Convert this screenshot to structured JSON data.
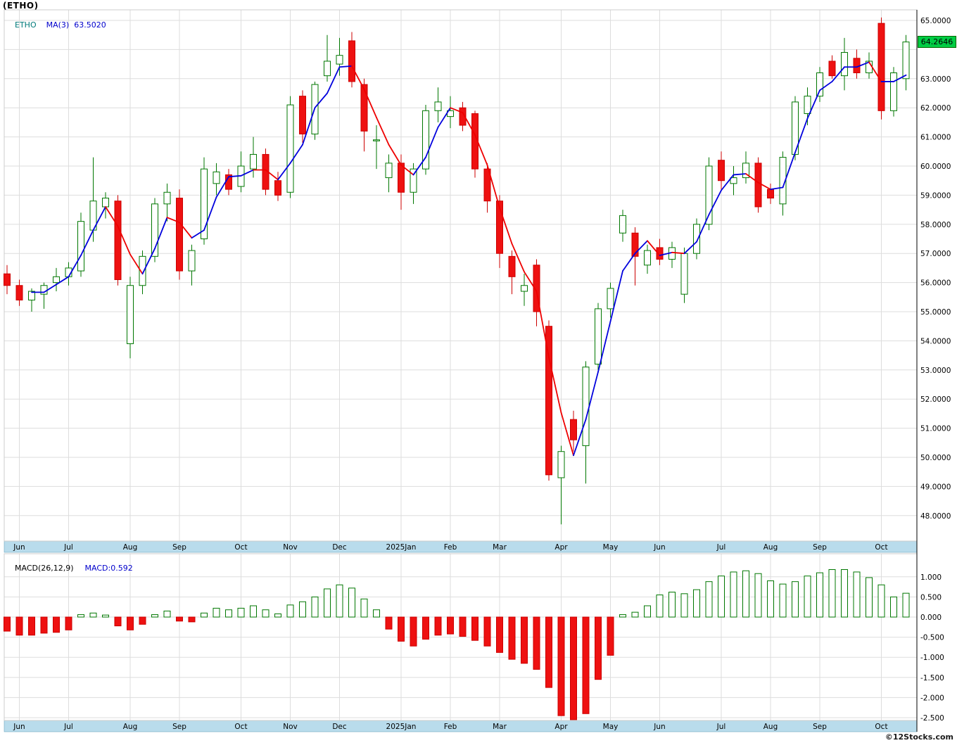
{
  "header": {
    "title": "(ETHO)"
  },
  "main_chart": {
    "symbol": "ETHO",
    "ma_text": "MA(3)  63.5020",
    "last_price": "64.2646"
  },
  "macd_chart": {
    "label": "MACD(26,12,9)",
    "value_text": "MACD:0.592"
  },
  "footer": {
    "copyright": "©12Stocks.com"
  },
  "colors": {
    "up": "#007700",
    "down": "#ee1111",
    "down_stroke": "#cc0000",
    "ma_up": "#0000dd",
    "ma_down": "#ee0000",
    "band": "#b9dcec",
    "band_border": "#6fa7c0",
    "grid": "#dddddd",
    "axis_text": "#000000",
    "badge_bg": "#00cc44"
  },
  "chart_data": {
    "type": "candlestick_with_macd_histogram",
    "title": "(ETHO)",
    "symbol": "ETHO",
    "ma_period": 3,
    "ma_last_value": 63.502,
    "last_price": 64.2646,
    "macd_params": "26,12,9",
    "macd_last_value": 0.592,
    "price_axis": {
      "grid_min": 48,
      "grid_max": 65,
      "grid_step": 1,
      "values": [
        65,
        63,
        62,
        61,
        60,
        59,
        58,
        57,
        56,
        55,
        54,
        53,
        52,
        51,
        50,
        49,
        48
      ],
      "labels": [
        "65.0000",
        "63.0000",
        "62.0000",
        "61.0000",
        "60.0000",
        "59.0000",
        "58.0000",
        "57.0000",
        "56.0000",
        "55.0000",
        "54.0000",
        "53.0000",
        "52.0000",
        "51.0000",
        "50.0000",
        "49.0000",
        "48.0000"
      ]
    },
    "macd_axis": {
      "values": [
        1.0,
        0.5,
        0.0,
        -0.5,
        -1.0,
        -1.5,
        -2.0,
        -2.5
      ],
      "labels": [
        "1.000",
        "0.500",
        "0.000",
        "-0.500",
        "-1.000",
        "-1.500",
        "-2.000",
        "-2.500"
      ]
    },
    "month_axis": {
      "labels": [
        "Jun",
        "Jul",
        "Aug",
        "Sep",
        "Oct",
        "Nov",
        "Dec",
        "2025Jan",
        "Feb",
        "Mar",
        "Apr",
        "May",
        "Jun",
        "Jul",
        "Aug",
        "Sep",
        "Oct"
      ],
      "indices": [
        1,
        5,
        10,
        14,
        19,
        23,
        27,
        32,
        36,
        40,
        45,
        49,
        53,
        58,
        62,
        66,
        71
      ]
    },
    "candles": [
      [
        56.3,
        56.6,
        55.6,
        55.9
      ],
      [
        55.9,
        56.1,
        55.2,
        55.4
      ],
      [
        55.4,
        55.8,
        55.0,
        55.7
      ],
      [
        55.6,
        56.0,
        55.1,
        55.9
      ],
      [
        56.0,
        56.5,
        55.7,
        56.2
      ],
      [
        56.2,
        56.7,
        55.9,
        56.5
      ],
      [
        56.4,
        58.4,
        56.2,
        58.1
      ],
      [
        57.8,
        60.3,
        57.4,
        58.8
      ],
      [
        58.6,
        59.1,
        58.2,
        58.9
      ],
      [
        58.8,
        59.0,
        55.9,
        56.1
      ],
      [
        53.9,
        56.2,
        53.4,
        55.9
      ],
      [
        55.9,
        57.1,
        55.6,
        56.9
      ],
      [
        56.9,
        58.9,
        56.7,
        58.7
      ],
      [
        58.7,
        59.4,
        58.1,
        59.1
      ],
      [
        58.9,
        59.2,
        56.1,
        56.4
      ],
      [
        56.4,
        57.3,
        55.9,
        57.1
      ],
      [
        57.5,
        60.3,
        57.3,
        59.9
      ],
      [
        59.4,
        60.1,
        59.0,
        59.8
      ],
      [
        59.7,
        59.9,
        59.0,
        59.2
      ],
      [
        59.3,
        60.5,
        59.1,
        60.0
      ],
      [
        59.9,
        61.0,
        59.6,
        60.4
      ],
      [
        60.4,
        60.6,
        59.0,
        59.2
      ],
      [
        59.5,
        59.8,
        58.8,
        59.0
      ],
      [
        59.1,
        62.4,
        58.9,
        62.1
      ],
      [
        62.4,
        62.6,
        60.8,
        61.1
      ],
      [
        61.1,
        62.9,
        60.9,
        62.8
      ],
      [
        63.1,
        64.5,
        62.9,
        63.6
      ],
      [
        63.5,
        64.4,
        63.1,
        63.8
      ],
      [
        64.3,
        64.6,
        62.7,
        62.9
      ],
      [
        62.8,
        63.0,
        60.5,
        61.2
      ],
      [
        60.9,
        61.4,
        59.9,
        60.9
      ],
      [
        59.6,
        60.4,
        59.1,
        60.1
      ],
      [
        60.1,
        60.4,
        58.5,
        59.1
      ],
      [
        59.1,
        60.1,
        58.7,
        59.9
      ],
      [
        59.9,
        62.1,
        59.7,
        61.9
      ],
      [
        61.9,
        62.7,
        61.5,
        62.2
      ],
      [
        61.7,
        62.4,
        61.3,
        61.9
      ],
      [
        62.0,
        62.2,
        61.2,
        61.4
      ],
      [
        61.8,
        61.9,
        59.6,
        59.9
      ],
      [
        59.9,
        60.1,
        58.4,
        58.8
      ],
      [
        58.8,
        59.0,
        56.5,
        57.0
      ],
      [
        56.9,
        57.1,
        55.6,
        56.2
      ],
      [
        55.7,
        56.3,
        55.2,
        55.9
      ],
      [
        56.6,
        56.8,
        54.5,
        55.0
      ],
      [
        54.5,
        54.7,
        49.2,
        49.4
      ],
      [
        49.3,
        50.4,
        47.7,
        50.2
      ],
      [
        51.3,
        51.6,
        50.2,
        50.6
      ],
      [
        50.4,
        53.3,
        49.1,
        53.1
      ],
      [
        53.2,
        55.3,
        53.0,
        55.1
      ],
      [
        55.1,
        56.0,
        54.8,
        55.8
      ],
      [
        57.7,
        58.5,
        57.4,
        58.3
      ],
      [
        57.7,
        57.9,
        55.9,
        56.9
      ],
      [
        56.6,
        57.3,
        56.3,
        57.1
      ],
      [
        57.2,
        57.5,
        56.6,
        56.8
      ],
      [
        56.8,
        57.4,
        56.5,
        57.2
      ],
      [
        55.6,
        57.2,
        55.3,
        57.0
      ],
      [
        57.0,
        58.2,
        56.8,
        58.0
      ],
      [
        58.0,
        60.3,
        57.8,
        60.0
      ],
      [
        60.2,
        60.5,
        59.2,
        59.5
      ],
      [
        59.4,
        60.0,
        59.0,
        59.6
      ],
      [
        59.6,
        60.5,
        59.4,
        60.1
      ],
      [
        60.1,
        60.3,
        58.4,
        58.6
      ],
      [
        59.2,
        59.4,
        58.7,
        58.9
      ],
      [
        58.7,
        60.5,
        58.3,
        60.3
      ],
      [
        60.4,
        62.4,
        60.2,
        62.2
      ],
      [
        61.8,
        62.7,
        61.4,
        62.4
      ],
      [
        62.4,
        63.4,
        62.2,
        63.2
      ],
      [
        63.6,
        63.8,
        63.0,
        63.1
      ],
      [
        63.1,
        64.4,
        62.6,
        63.9
      ],
      [
        63.7,
        64.0,
        63.0,
        63.2
      ],
      [
        63.2,
        63.9,
        63.0,
        63.6
      ],
      [
        64.9,
        65.1,
        61.6,
        61.9
      ],
      [
        61.9,
        63.4,
        61.7,
        63.2
      ],
      [
        63.0,
        64.5,
        62.6,
        64.26
      ]
    ],
    "macd": [
      -0.35,
      -0.45,
      -0.45,
      -0.4,
      -0.38,
      -0.32,
      0.06,
      0.1,
      0.05,
      -0.22,
      -0.32,
      -0.18,
      0.06,
      0.15,
      -0.1,
      -0.12,
      0.1,
      0.22,
      0.18,
      0.22,
      0.28,
      0.18,
      0.08,
      0.3,
      0.38,
      0.5,
      0.7,
      0.8,
      0.72,
      0.45,
      0.18,
      -0.3,
      -0.6,
      -0.72,
      -0.55,
      -0.45,
      -0.42,
      -0.48,
      -0.58,
      -0.72,
      -0.88,
      -1.05,
      -1.15,
      -1.3,
      -1.75,
      -2.45,
      -2.55,
      -2.4,
      -1.55,
      -0.95,
      0.06,
      0.12,
      0.28,
      0.55,
      0.62,
      0.58,
      0.68,
      0.88,
      1.02,
      1.12,
      1.15,
      1.08,
      0.9,
      0.82,
      0.88,
      1.02,
      1.1,
      1.18,
      1.18,
      1.12,
      0.98,
      0.8,
      0.5,
      0.592
    ]
  }
}
